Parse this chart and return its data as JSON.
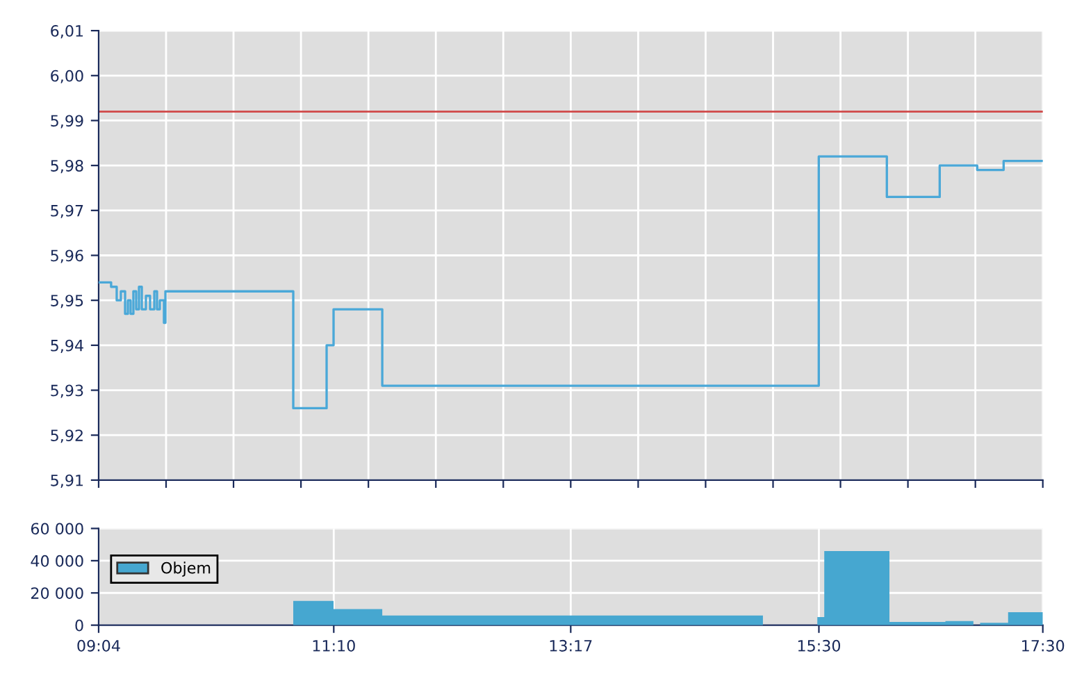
{
  "chart_data": [
    {
      "type": "step",
      "x": [
        9.067,
        9.178,
        9.228,
        9.265,
        9.303,
        9.328,
        9.352,
        9.377,
        9.402,
        9.427,
        9.452,
        9.489,
        9.526,
        9.564,
        9.588,
        9.613,
        9.65,
        9.663,
        10.805,
        11.103,
        11.165,
        11.6,
        15.499,
        16.107,
        16.579,
        16.914,
        17.15,
        17.5
      ],
      "values": [
        5.954,
        5.953,
        5.95,
        5.952,
        5.947,
        5.95,
        5.947,
        5.952,
        5.948,
        5.953,
        5.948,
        5.951,
        5.948,
        5.952,
        5.948,
        5.95,
        5.945,
        5.952,
        5.926,
        5.94,
        5.948,
        5.931,
        5.982,
        5.973,
        5.98,
        5.979,
        5.981,
        5.981
      ],
      "color": "#4aa8d8",
      "xlim": [
        9.0667,
        17.5
      ],
      "xticks": [
        {
          "value": 9.0667,
          "label": null
        },
        {
          "value": 9.669,
          "label": null
        },
        {
          "value": 10.2714,
          "label": null
        },
        {
          "value": 10.8738,
          "label": null
        },
        {
          "value": 11.4762,
          "label": null
        },
        {
          "value": 12.0786,
          "label": null
        },
        {
          "value": 12.681,
          "label": null
        },
        {
          "value": 13.2833,
          "label": null
        },
        {
          "value": 13.8857,
          "label": null
        },
        {
          "value": 14.4881,
          "label": null
        },
        {
          "value": 15.0905,
          "label": null
        },
        {
          "value": 15.6929,
          "label": null
        },
        {
          "value": 16.2952,
          "label": null
        },
        {
          "value": 16.8976,
          "label": null
        },
        {
          "value": 17.5,
          "label": null
        }
      ],
      "ylim": [
        5.91,
        6.01
      ],
      "yticks": [
        {
          "value": 5.91,
          "label": "5,91"
        },
        {
          "value": 5.92,
          "label": "5,92"
        },
        {
          "value": 5.93,
          "label": "5,93"
        },
        {
          "value": 5.94,
          "label": "5,94"
        },
        {
          "value": 5.95,
          "label": "5,95"
        },
        {
          "value": 5.96,
          "label": "5,96"
        },
        {
          "value": 5.97,
          "label": "5,97"
        },
        {
          "value": 5.98,
          "label": "5,98"
        },
        {
          "value": 5.99,
          "label": "5,99"
        },
        {
          "value": 6.0,
          "label": "6,00"
        },
        {
          "value": 6.01,
          "label": "6,01"
        }
      ],
      "ref_lines": [
        {
          "axis": "y",
          "value": 5.992,
          "color": "#d04848"
        }
      ],
      "grid": true,
      "tick_labels": "y"
    },
    {
      "type": "area",
      "series": [
        {
          "name": "Objem",
          "color": "#46a7d0",
          "x": [
            9.0667,
            10.805,
            11.165,
            11.6,
            15.0,
            15.486,
            15.548,
            16.13,
            16.63,
            16.88,
            16.94,
            17.19,
            17.5
          ],
          "values": [
            0,
            15000,
            10000,
            6000,
            0,
            5000,
            46000,
            2000,
            2500,
            0,
            1500,
            8000,
            8000
          ]
        }
      ],
      "xlim": [
        9.0667,
        17.5
      ],
      "xticks": [
        {
          "value": 9.0667,
          "label": "09:04"
        },
        {
          "value": 11.1667,
          "label": "11:10"
        },
        {
          "value": 13.2833,
          "label": "13:17"
        },
        {
          "value": 15.5,
          "label": "15:30"
        },
        {
          "value": 17.5,
          "label": "17:30"
        }
      ],
      "ylim": [
        0,
        60000
      ],
      "yticks": [
        {
          "value": 0,
          "label": "0"
        },
        {
          "value": 20000,
          "label": "20 000"
        },
        {
          "value": 40000,
          "label": "40 000"
        },
        {
          "value": 60000,
          "label": "60 000"
        }
      ],
      "grid": true,
      "legend": "top left"
    }
  ]
}
